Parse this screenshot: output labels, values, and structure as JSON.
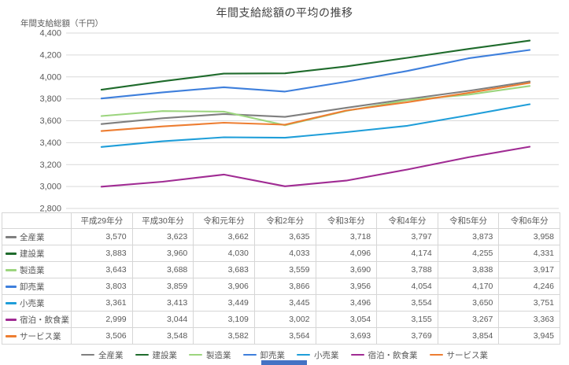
{
  "chart": {
    "title": "年間支給総額の平均の推移",
    "y_axis_label": "年間支給総額（千円）",
    "y_ticks": [
      "4,400",
      "4,200",
      "4,000",
      "3,800",
      "3,600",
      "3,400",
      "3,200",
      "3,000",
      "2,800"
    ],
    "chart_data": {
      "type": "line",
      "categories": [
        "平成29年分",
        "平成30年分",
        "令和元年分",
        "令和2年分",
        "令和3年分",
        "令和4年分",
        "令和5年分",
        "令和6年分"
      ],
      "series": [
        {
          "name": "全産業",
          "color": "#7F7F7F",
          "values": [
            3570,
            3623,
            3662,
            3635,
            3718,
            3797,
            3873,
            3958
          ]
        },
        {
          "name": "建設業",
          "color": "#1F6B2C",
          "values": [
            3883,
            3960,
            4030,
            4033,
            4096,
            4174,
            4255,
            4331
          ]
        },
        {
          "name": "製造業",
          "color": "#9CD57E",
          "values": [
            3643,
            3688,
            3683,
            3559,
            3690,
            3788,
            3838,
            3917
          ]
        },
        {
          "name": "卸売業",
          "color": "#3E7FDC",
          "values": [
            3803,
            3859,
            3906,
            3866,
            3956,
            4054,
            4170,
            4246
          ]
        },
        {
          "name": "小売業",
          "color": "#1F9ED9",
          "values": [
            3361,
            3413,
            3449,
            3445,
            3496,
            3554,
            3650,
            3751
          ]
        },
        {
          "name": "宿泊・飲食業",
          "color": "#A02B93",
          "values": [
            2999,
            3044,
            3109,
            3002,
            3054,
            3155,
            3267,
            3363
          ]
        },
        {
          "name": "サービス業",
          "color": "#ED7D31",
          "values": [
            3506,
            3548,
            3582,
            3564,
            3693,
            3769,
            3854,
            3945
          ]
        }
      ],
      "ylim": [
        2800,
        4400
      ],
      "grid": true,
      "legend_position": "bottom"
    },
    "grid_color": "#d9d9d9",
    "tick_color": "#595959"
  },
  "misc": {
    "selection_bar_color": "#4472C4"
  }
}
